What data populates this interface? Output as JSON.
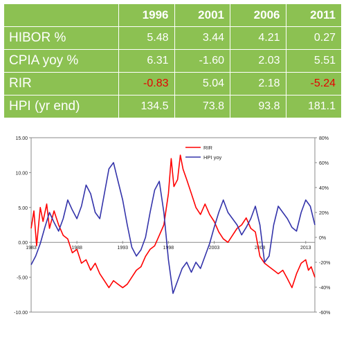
{
  "table": {
    "columns": [
      "1996",
      "2001",
      "2006",
      "2011"
    ],
    "rows": [
      {
        "label": "HIBOR %",
        "values": [
          "5.48",
          "3.44",
          "4.21",
          "0.27"
        ]
      },
      {
        "label": "CPIA yoy %",
        "values": [
          "6.31",
          "-1.60",
          "2.03",
          "5.51"
        ]
      },
      {
        "label": "RIR",
        "values": [
          "-0.83",
          "5.04",
          "2.18",
          "-5.24"
        ]
      },
      {
        "label": "HPI (yr end)",
        "values": [
          "134.5",
          "73.8",
          "93.8",
          "181.1"
        ]
      }
    ],
    "negative_color": "#e60000",
    "background_color": "#8cc152"
  },
  "chart_data": {
    "type": "line",
    "x_tick_labels": [
      "1983",
      "1988",
      "1993",
      "1998",
      "2003",
      "2008",
      "2013"
    ],
    "x_ticks": [
      1983,
      1988,
      1993,
      1998,
      2003,
      2008,
      2013
    ],
    "xlim": [
      1983,
      2014
    ],
    "y_left": {
      "ticks": [
        -10,
        -5,
        0,
        5,
        10,
        15
      ],
      "tick_labels": [
        "-10.00",
        "-5.00",
        "0.00",
        "5.00",
        "10.00",
        "15.00"
      ],
      "lim": [
        -10,
        15
      ]
    },
    "y_right": {
      "ticks": [
        -60,
        -40,
        -20,
        0,
        20,
        40,
        60,
        80
      ],
      "tick_labels": [
        "-60%",
        "-40%",
        "-20%",
        "0%",
        "20%",
        "40%",
        "60%",
        "80%"
      ],
      "lim": [
        -60,
        80
      ]
    },
    "grid": false,
    "legend_position": "top-center",
    "series": [
      {
        "name": "RIR",
        "axis": "left",
        "color": "#ff0000",
        "x": [
          1983.0,
          1983.3,
          1983.6,
          1984.0,
          1984.3,
          1984.7,
          1985.0,
          1985.5,
          1986.0,
          1986.5,
          1987.0,
          1987.5,
          1988.0,
          1988.5,
          1989.0,
          1989.5,
          1990.0,
          1990.5,
          1991.0,
          1991.5,
          1992.0,
          1992.5,
          1993.0,
          1993.5,
          1994.0,
          1994.5,
          1995.0,
          1995.5,
          1996.0,
          1996.5,
          1997.0,
          1997.5,
          1998.0,
          1998.3,
          1998.6,
          1999.0,
          1999.3,
          1999.6,
          2000.0,
          2000.5,
          2001.0,
          2001.5,
          2002.0,
          2002.5,
          2003.0,
          2003.5,
          2004.0,
          2004.5,
          2005.0,
          2005.5,
          2006.0,
          2006.5,
          2007.0,
          2007.5,
          2008.0,
          2008.5,
          2009.0,
          2009.5,
          2010.0,
          2010.5,
          2011.0,
          2011.5,
          2012.0,
          2012.5,
          2013.0,
          2013.3,
          2013.6,
          2014.0
        ],
        "y": [
          2.0,
          4.5,
          -0.5,
          5.0,
          3.0,
          5.5,
          2.0,
          4.5,
          2.5,
          1.0,
          0.5,
          -1.5,
          -1.0,
          -3.0,
          -2.5,
          -4.0,
          -3.0,
          -4.5,
          -5.5,
          -6.5,
          -5.5,
          -6.0,
          -6.5,
          -6.0,
          -5.0,
          -4.0,
          -3.5,
          -2.0,
          -1.0,
          -0.5,
          1.0,
          2.5,
          7.0,
          12.0,
          8.0,
          9.0,
          12.5,
          10.5,
          9.0,
          7.0,
          5.0,
          4.0,
          5.5,
          4.0,
          3.0,
          1.5,
          0.5,
          0.0,
          1.0,
          2.0,
          2.5,
          3.5,
          2.0,
          1.5,
          -2.0,
          -3.0,
          -3.5,
          -4.0,
          -4.5,
          -4.0,
          -5.2,
          -6.5,
          -4.5,
          -3.0,
          -2.5,
          -4.0,
          -3.5,
          -5.0
        ]
      },
      {
        "name": "HPI yoy",
        "axis": "right",
        "color": "#3333aa",
        "x": [
          1983.0,
          1983.5,
          1984.0,
          1984.5,
          1985.0,
          1985.5,
          1986.0,
          1986.5,
          1987.0,
          1987.5,
          1988.0,
          1988.5,
          1989.0,
          1989.5,
          1990.0,
          1990.5,
          1991.0,
          1991.5,
          1992.0,
          1992.5,
          1993.0,
          1993.5,
          1994.0,
          1994.5,
          1995.0,
          1995.5,
          1996.0,
          1996.5,
          1997.0,
          1997.5,
          1998.0,
          1998.5,
          1999.0,
          1999.5,
          2000.0,
          2000.5,
          2001.0,
          2001.5,
          2002.0,
          2002.5,
          2003.0,
          2003.5,
          2004.0,
          2004.5,
          2005.0,
          2005.5,
          2006.0,
          2006.5,
          2007.0,
          2007.5,
          2008.0,
          2008.5,
          2009.0,
          2009.5,
          2010.0,
          2010.5,
          2011.0,
          2011.5,
          2012.0,
          2012.5,
          2013.0,
          2013.5,
          2014.0
        ],
        "y": [
          -22,
          -15,
          -5,
          8,
          20,
          12,
          5,
          15,
          30,
          22,
          15,
          25,
          42,
          35,
          20,
          15,
          35,
          55,
          60,
          45,
          30,
          10,
          -8,
          -15,
          -10,
          0,
          20,
          38,
          45,
          20,
          -18,
          -45,
          -35,
          -25,
          -20,
          -28,
          -20,
          -25,
          -15,
          -5,
          8,
          20,
          30,
          20,
          15,
          10,
          2,
          8,
          15,
          25,
          10,
          -20,
          -15,
          10,
          25,
          20,
          15,
          8,
          5,
          20,
          30,
          25,
          10
        ]
      }
    ]
  }
}
